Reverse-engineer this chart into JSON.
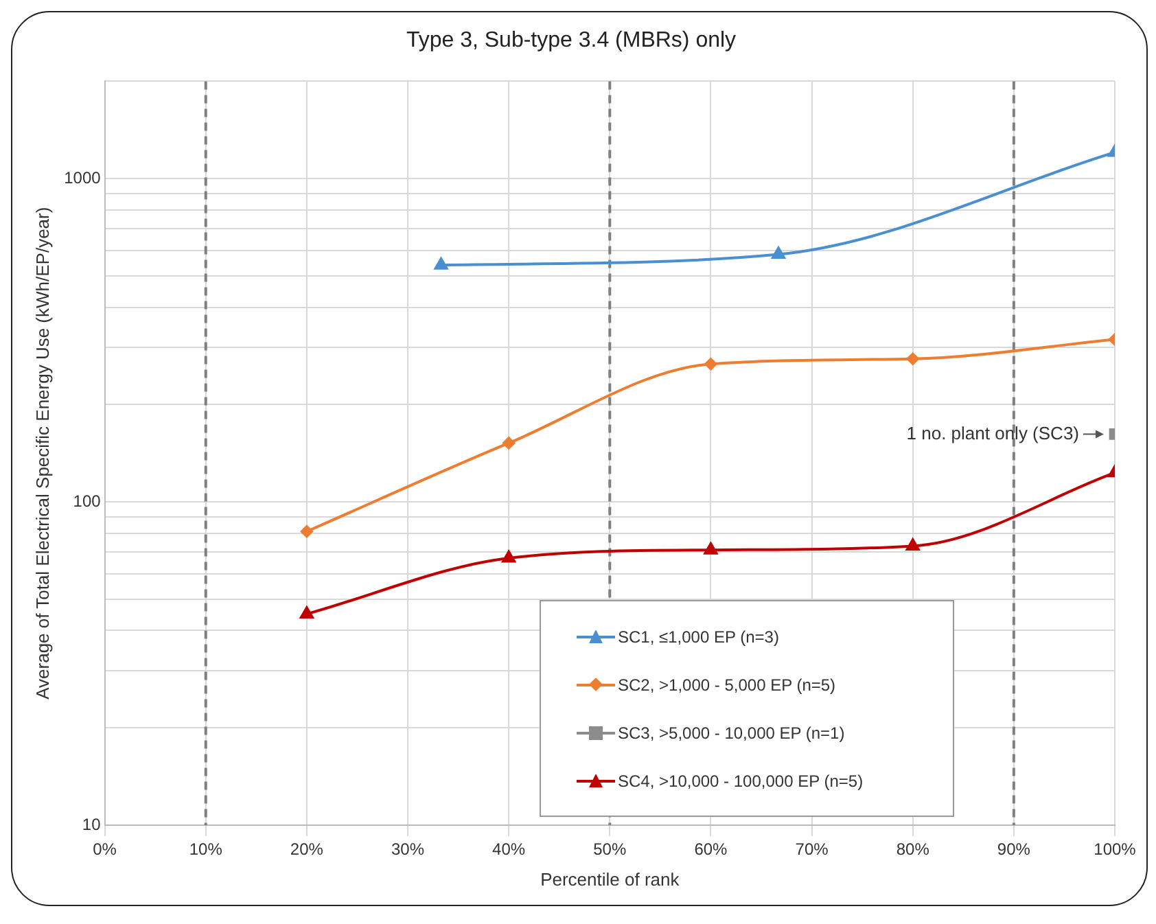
{
  "chart_data": {
    "type": "line",
    "title": "Type 3, Sub-type 3.4 (MBRs) only",
    "xlabel": "Percentile of rank",
    "ylabel": "Average of Total Electrical Specific Energy Use (kWh/EP/year)",
    "series": [
      {
        "name": "SC1, ≤1,000 EP (n=3)",
        "color": "#4a8fd0",
        "marker": "triangle",
        "x": [
          33.3,
          66.7,
          100
        ],
        "values": [
          540,
          583,
          1205
        ]
      },
      {
        "name": "SC2, >1,000 - 5,000 EP (n=5)",
        "color": "#ed7d31",
        "marker": "diamond",
        "x": [
          20,
          40,
          60,
          80,
          100
        ],
        "values": [
          81,
          152,
          267,
          277,
          318
        ]
      },
      {
        "name": "SC3, >5,000 - 10,000 EP (n=1)",
        "color": "#8c8c8c",
        "marker": "square",
        "x": [
          100
        ],
        "values": [
          162
        ]
      },
      {
        "name": "SC4, >10,000 - 100,000 EP (n=5)",
        "color": "#c00000",
        "marker": "triangle",
        "x": [
          20,
          40,
          60,
          80,
          100
        ],
        "values": [
          45,
          67,
          71,
          73,
          123
        ]
      }
    ],
    "log": "y",
    "xlim": [
      0,
      100
    ],
    "ylim": [
      10,
      2000
    ],
    "xticks": [
      {
        "value": 0,
        "label": "0%"
      },
      {
        "value": 10,
        "label": "10%"
      },
      {
        "value": 20,
        "label": "20%"
      },
      {
        "value": 30,
        "label": "30%"
      },
      {
        "value": 40,
        "label": "40%"
      },
      {
        "value": 50,
        "label": "50%"
      },
      {
        "value": 60,
        "label": "60%"
      },
      {
        "value": 70,
        "label": "70%"
      },
      {
        "value": 80,
        "label": "80%"
      },
      {
        "value": 90,
        "label": "90%"
      },
      {
        "value": 100,
        "label": "100%"
      }
    ],
    "yticks": [
      10,
      {
        "value": 20,
        "label": null
      },
      {
        "value": 30,
        "label": null
      },
      {
        "value": 40,
        "label": null
      },
      {
        "value": 50,
        "label": null
      },
      {
        "value": 60,
        "label": null
      },
      {
        "value": 70,
        "label": null
      },
      {
        "value": 80,
        "label": null
      },
      {
        "value": 90,
        "label": null
      },
      100,
      {
        "value": 200,
        "label": null
      },
      {
        "value": 300,
        "label": null
      },
      {
        "value": 400,
        "label": null
      },
      {
        "value": 500,
        "label": null
      },
      {
        "value": 600,
        "label": null
      },
      {
        "value": 700,
        "label": null
      },
      {
        "value": 800,
        "label": null
      },
      {
        "value": 900,
        "label": null
      },
      1000,
      {
        "value": 2000,
        "label": null
      }
    ],
    "ref_lines": [
      {
        "axis": "x",
        "value": 10,
        "color": "#7f7f7f",
        "line_style": "dashed"
      },
      {
        "axis": "x",
        "value": 50,
        "color": "#7f7f7f",
        "line_style": "dashed"
      },
      {
        "axis": "x",
        "value": 90,
        "color": "#7f7f7f",
        "line_style": "dashed"
      }
    ],
    "annotations": [
      {
        "text": "1 no. plant only (SC3)",
        "x": 100,
        "y": 162
      }
    ],
    "grid": true,
    "legend": "bottom",
    "line_style": "solid"
  }
}
